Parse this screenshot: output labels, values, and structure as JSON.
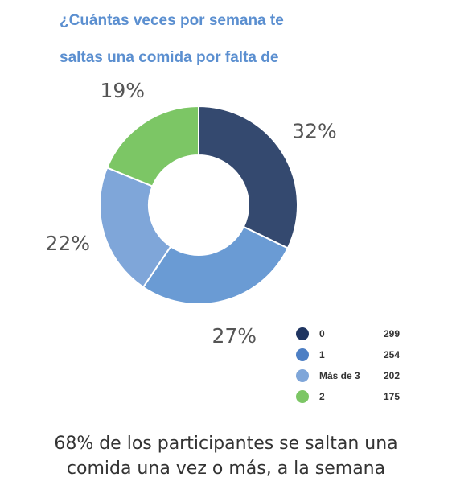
{
  "title_lines": [
    "¿Cuántas veces por semana te",
    "saltas una comida por falta de"
  ],
  "caption_lines": [
    "68% de los participantes se saltan una",
    "comida una vez o más, a la semana"
  ],
  "chart_data": {
    "type": "pie",
    "title": "¿Cuántas veces por semana te saltas una comida por falta de",
    "donut": true,
    "legend_position": "bottom-right",
    "slices": [
      {
        "label": "0",
        "value": 299,
        "percent_label": "32%",
        "color": "#34496f"
      },
      {
        "label": "1",
        "value": 254,
        "percent_label": "27%",
        "color": "#6a9bd4"
      },
      {
        "label": "Más de 3",
        "value": 202,
        "percent_label": "22%",
        "color": "#7fa6d9"
      },
      {
        "label": "2",
        "value": 175,
        "percent_label": "19%",
        "color": "#7cc665"
      }
    ]
  },
  "legend_colors": [
    "#1f3561",
    "#4d7fc4",
    "#7fa6d9",
    "#7cc665"
  ]
}
